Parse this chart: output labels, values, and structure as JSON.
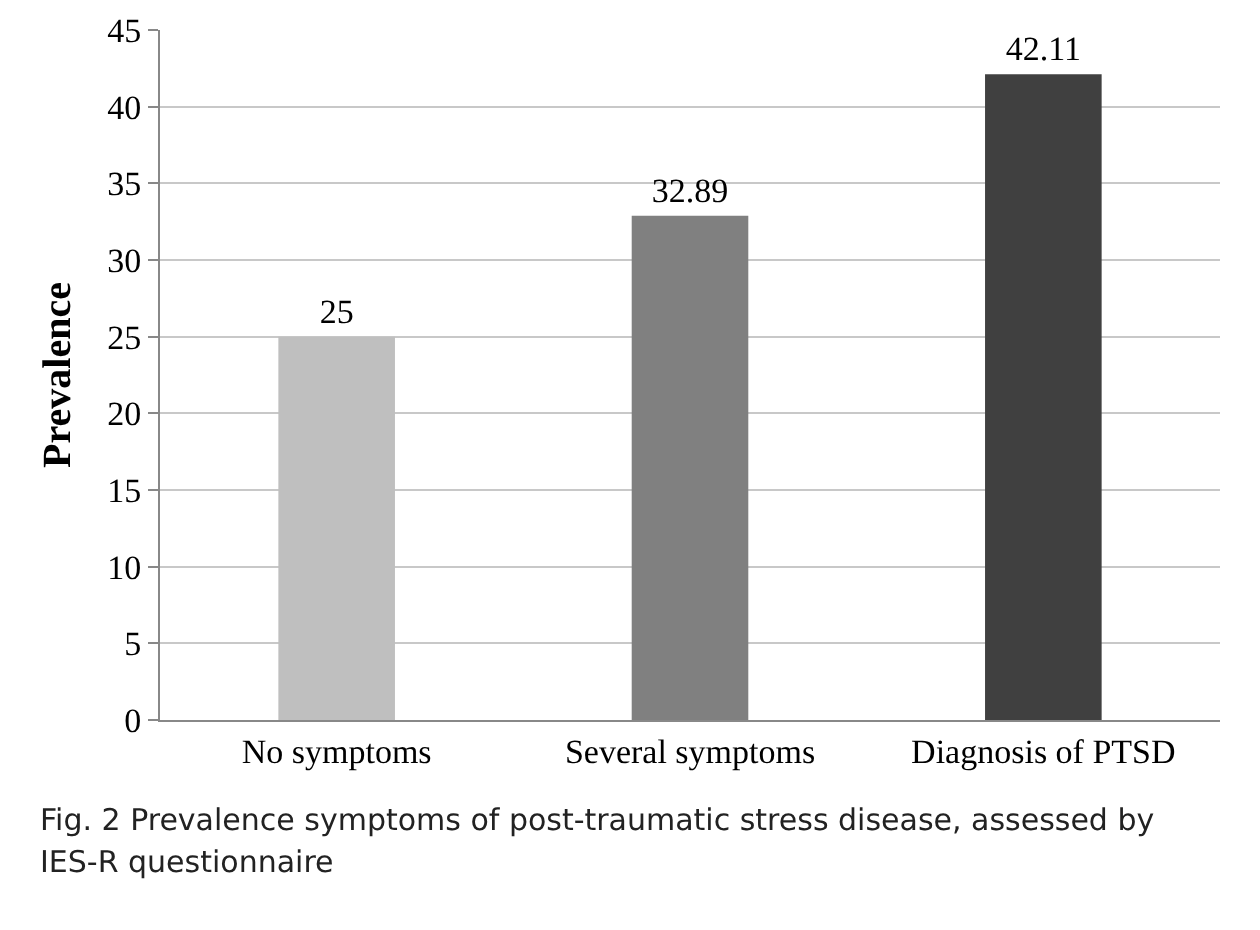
{
  "chart_data": {
    "type": "bar",
    "ylabel": "Prevalence",
    "categories": [
      "No symptoms",
      "Several symptoms",
      "Diagnosis of PTSD"
    ],
    "values": [
      25,
      32.89,
      42.11
    ],
    "colors": [
      "#bfbfbf",
      "#808080",
      "#404040"
    ],
    "ylim": [
      0,
      45
    ],
    "yticks": [
      0,
      5,
      10,
      15,
      20,
      25,
      30,
      35,
      40,
      45
    ],
    "grid": "y",
    "data_labels": true,
    "legend": false,
    "annotations": [
      "Fig. 2  Prevalence symptoms of post-traumatic stress disease, assessed by IES-R questionnaire"
    ]
  }
}
